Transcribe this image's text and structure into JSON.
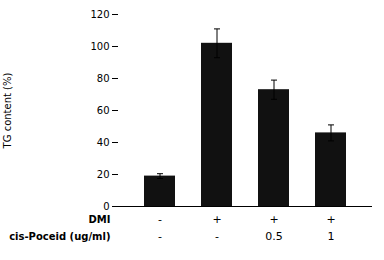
{
  "chart_data": {
    "type": "bar",
    "categories": [
      null,
      null,
      null,
      null
    ],
    "values": [
      19,
      102,
      73,
      46
    ],
    "errors": [
      1.5,
      9,
      6,
      5
    ],
    "color": "#111111",
    "ylabel": "TG content (%)",
    "ylim": [
      0,
      120
    ],
    "yticks": [
      0,
      20,
      40,
      60,
      80,
      100,
      120
    ],
    "label_rows": [
      {
        "name": "DMI",
        "labels": [
          "-",
          "+",
          "+",
          "+"
        ]
      },
      {
        "name": "cis-Poceid (ug/ml)",
        "labels": [
          "-",
          "-",
          "0.5",
          "1"
        ]
      }
    ]
  }
}
